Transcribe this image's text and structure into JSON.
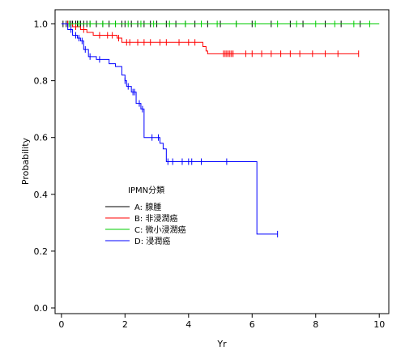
{
  "chart_data": {
    "type": "line",
    "chart_kind": "kaplan-meier survival curve",
    "xlabel": "Yr",
    "ylabel": "Probability",
    "xlim": [
      -0.2,
      10.3
    ],
    "ylim": [
      -0.02,
      1.05
    ],
    "xticks": [
      0,
      2,
      4,
      6,
      8,
      10
    ],
    "yticks": [
      0.0,
      0.2,
      0.4,
      0.6,
      0.8,
      1.0
    ],
    "xtick_labels": [
      "0",
      "2",
      "4",
      "6",
      "8",
      "10"
    ],
    "ytick_labels": [
      "0.0",
      "0.2",
      "0.4",
      "0.6",
      "0.8",
      "1.0"
    ],
    "grid": false,
    "legend": {
      "title": "IPMN分類",
      "placement": "center-left",
      "entries": [
        "A: 腺腫",
        "B: 非浸潤癌",
        "C: 微小浸潤癌",
        "D: 浸潤癌"
      ]
    },
    "series": [
      {
        "name": "A: 腺腫",
        "color": "#000000",
        "steps": [
          [
            0,
            1.0
          ],
          [
            9.4,
            1.0
          ]
        ],
        "censor_x": [
          0.05,
          0.15,
          0.2,
          0.3,
          0.35,
          0.45,
          0.5,
          0.6,
          0.7,
          0.8,
          0.9,
          1.1,
          1.3,
          1.5,
          1.7,
          1.9,
          2.0,
          2.2,
          2.4,
          2.6,
          2.8,
          3.0,
          3.3,
          3.6,
          3.9,
          4.2,
          4.6,
          5.0,
          5.5,
          6.0,
          6.6,
          7.2,
          7.6,
          8.3,
          8.8,
          9.4
        ]
      },
      {
        "name": "B: 非浸潤癌",
        "color": "#ff0000",
        "steps": [
          [
            0,
            1.0
          ],
          [
            0.35,
            0.99
          ],
          [
            0.6,
            0.98
          ],
          [
            0.8,
            0.97
          ],
          [
            1.0,
            0.96
          ],
          [
            1.75,
            0.95
          ],
          [
            1.9,
            0.935
          ],
          [
            4.45,
            0.92
          ],
          [
            4.55,
            0.905
          ],
          [
            4.6,
            0.895
          ],
          [
            9.35,
            0.895
          ]
        ],
        "censor_x": [
          0.2,
          0.45,
          0.7,
          1.2,
          1.45,
          1.6,
          1.8,
          2.05,
          2.15,
          2.4,
          2.6,
          2.8,
          3.1,
          3.3,
          3.7,
          4.0,
          4.2,
          5.1,
          5.15,
          5.2,
          5.25,
          5.3,
          5.35,
          5.4,
          5.8,
          6.0,
          6.3,
          6.6,
          6.9,
          7.2,
          7.5,
          7.9,
          8.3,
          8.7,
          9.35
        ]
      },
      {
        "name": "C: 微小浸潤癌",
        "color": "#00cc00",
        "steps": [
          [
            0,
            1.0
          ],
          [
            10.0,
            1.0
          ]
        ],
        "censor_x": [
          0.25,
          0.55,
          0.9,
          1.3,
          1.7,
          2.1,
          2.5,
          2.9,
          3.4,
          3.9,
          4.4,
          4.9,
          5.5,
          6.1,
          6.8,
          7.4,
          8.0,
          8.6,
          9.2,
          9.7
        ]
      },
      {
        "name": "D: 浸潤癌",
        "color": "#0000ff",
        "steps": [
          [
            0,
            1.0
          ],
          [
            0.2,
            0.98
          ],
          [
            0.35,
            0.96
          ],
          [
            0.5,
            0.95
          ],
          [
            0.6,
            0.94
          ],
          [
            0.7,
            0.91
          ],
          [
            0.85,
            0.885
          ],
          [
            1.1,
            0.875
          ],
          [
            1.5,
            0.86
          ],
          [
            1.7,
            0.85
          ],
          [
            1.9,
            0.82
          ],
          [
            2.0,
            0.8
          ],
          [
            2.05,
            0.78
          ],
          [
            2.2,
            0.76
          ],
          [
            2.35,
            0.72
          ],
          [
            2.5,
            0.7
          ],
          [
            2.6,
            0.6
          ],
          [
            3.1,
            0.58
          ],
          [
            3.2,
            0.56
          ],
          [
            3.3,
            0.515
          ],
          [
            6.15,
            0.515
          ],
          [
            6.15,
            0.26
          ],
          [
            6.8,
            0.26
          ]
        ],
        "censor_x": [
          0.3,
          0.45,
          0.55,
          0.65,
          0.75,
          0.9,
          1.2,
          2.0,
          2.1,
          2.25,
          2.3,
          2.45,
          2.55,
          2.85,
          3.05,
          3.35,
          3.5,
          3.8,
          4.0,
          4.1,
          4.4,
          5.2,
          6.8
        ]
      }
    ]
  }
}
